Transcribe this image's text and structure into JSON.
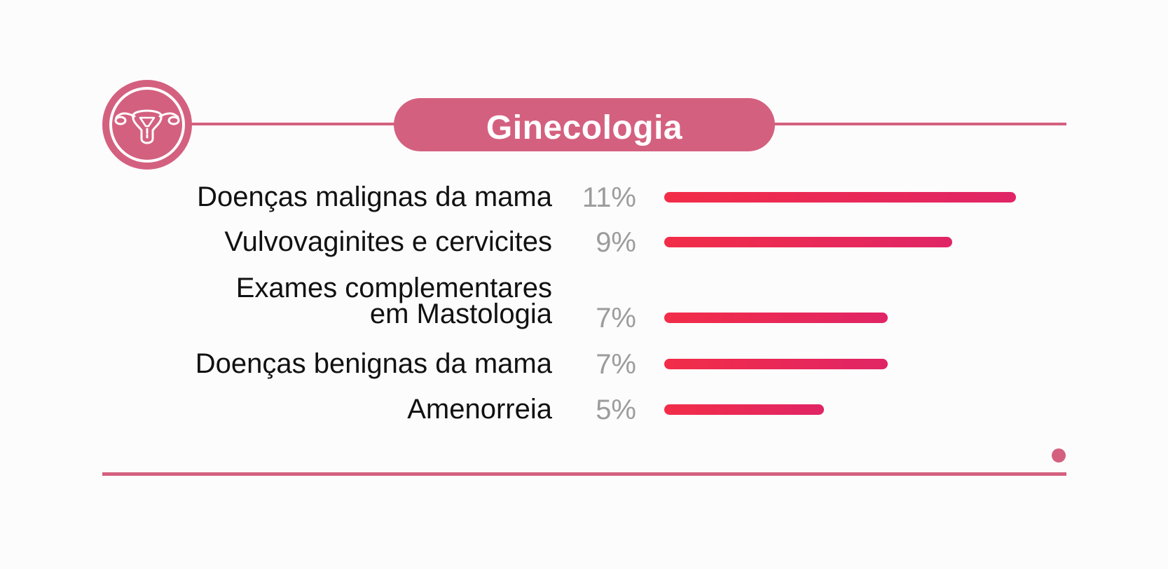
{
  "header": {
    "title": "Ginecologia",
    "icon": "uterus-icon"
  },
  "colors": {
    "accent": "#d4607f",
    "bar_start": "#f22d48",
    "bar_end": "#e02566",
    "label": "#111111",
    "percent": "#9c9c9c"
  },
  "chart_data": {
    "type": "bar",
    "orientation": "horizontal",
    "title": "Ginecologia",
    "categories": [
      "Doenças malignas da mama",
      "Vulvovaginites e cervicites",
      "Exames complementares\nem Mastologia",
      "Doenças benignas da mama",
      "Amenorreia"
    ],
    "values": [
      11,
      9,
      7,
      7,
      5
    ],
    "value_labels": [
      "11%",
      "9%",
      "7%",
      "7%",
      "5%"
    ],
    "unit": "%",
    "xlim": [
      0,
      11
    ],
    "grid": false,
    "legend": "none"
  }
}
